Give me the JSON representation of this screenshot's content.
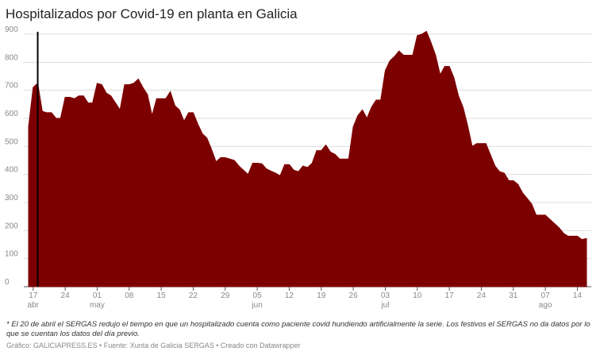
{
  "chart_data": {
    "type": "area",
    "title": "Hospitalizados por Covid-19 en planta en Galicia",
    "color": "#7d0000",
    "marker_category": "18 abr",
    "categories": [
      "16 abr",
      "17 abr",
      "18 abr",
      "19 abr",
      "20 abr",
      "21 abr",
      "22 abr",
      "23 abr",
      "24 abr",
      "25 abr",
      "26 abr",
      "27 abr",
      "28 abr",
      "29 abr",
      "30 abr",
      "01 may",
      "02 may",
      "03 may",
      "04 may",
      "05 may",
      "06 may",
      "07 may",
      "08 may",
      "09 may",
      "10 may",
      "11 may",
      "12 may",
      "13 may",
      "14 may",
      "15 may",
      "16 may",
      "17 may",
      "18 may",
      "19 may",
      "20 may",
      "21 may",
      "22 may",
      "23 may",
      "24 may",
      "25 may",
      "26 may",
      "27 may",
      "28 may",
      "29 may",
      "30 may",
      "31 may",
      "01 jun",
      "02 jun",
      "03 jun",
      "04 jun",
      "05 jun",
      "06 jun",
      "07 jun",
      "08 jun",
      "09 jun",
      "10 jun",
      "11 jun",
      "12 jun",
      "13 jun",
      "14 jun",
      "15 jun",
      "16 jun",
      "17 jun",
      "18 jun",
      "19 jun",
      "20 jun",
      "21 jun",
      "22 jun",
      "23 jun",
      "24 jun",
      "25 jun",
      "26 jun",
      "27 jun",
      "28 jun",
      "29 jun",
      "30 jun",
      "01 jul",
      "02 jul",
      "03 jul",
      "04 jul",
      "05 jul",
      "06 jul",
      "07 jul",
      "08 jul",
      "09 jul",
      "10 jul",
      "11 jul",
      "12 jul",
      "13 jul",
      "14 jul",
      "15 jul",
      "16 jul",
      "17 jul",
      "18 jul",
      "19 jul",
      "20 jul",
      "21 jul",
      "22 jul",
      "23 jul",
      "24 jul",
      "25 jul",
      "26 jul",
      "27 jul",
      "28 jul",
      "29 jul",
      "30 jul",
      "31 jul",
      "01 ago",
      "02 ago",
      "03 ago",
      "04 ago",
      "05 ago",
      "06 ago",
      "07 ago",
      "08 ago",
      "09 ago",
      "10 ago",
      "11 ago",
      "12 ago",
      "13 ago",
      "14 ago",
      "15 ago",
      "16 ago"
    ],
    "values": [
      570,
      710,
      725,
      625,
      620,
      620,
      600,
      600,
      675,
      675,
      670,
      680,
      680,
      655,
      655,
      725,
      720,
      690,
      680,
      655,
      630,
      720,
      720,
      725,
      740,
      710,
      685,
      610,
      670,
      670,
      670,
      695,
      645,
      630,
      590,
      620,
      620,
      580,
      545,
      530,
      490,
      445,
      460,
      460,
      455,
      450,
      430,
      415,
      400,
      440,
      440,
      438,
      420,
      412,
      405,
      395,
      435,
      435,
      415,
      410,
      430,
      425,
      440,
      485,
      485,
      505,
      480,
      472,
      455,
      455,
      455,
      570,
      610,
      630,
      600,
      640,
      665,
      665,
      770,
      805,
      820,
      840,
      825,
      825,
      825,
      895,
      900,
      910,
      870,
      825,
      755,
      785,
      785,
      745,
      680,
      640,
      575,
      500,
      510,
      510,
      510,
      470,
      430,
      410,
      405,
      378,
      378,
      365,
      335,
      315,
      295,
      255,
      255,
      255,
      240,
      225,
      210,
      190,
      180,
      180,
      180,
      168,
      172
    ],
    "ylim": [
      0,
      900
    ],
    "yticks": [
      0,
      100,
      200,
      300,
      400,
      500,
      600,
      700,
      800,
      900
    ],
    "grid": true,
    "xticks": [
      {
        "value": "17 abr",
        "label": "17"
      },
      {
        "value": "24 abr",
        "label": "24"
      },
      {
        "value": "01 may",
        "label": "01"
      },
      {
        "value": "08 may",
        "label": "08"
      },
      {
        "value": "15 may",
        "label": "15"
      },
      {
        "value": "22 may",
        "label": "22"
      },
      {
        "value": "29 may",
        "label": "29"
      },
      {
        "value": "05 jun",
        "label": "05"
      },
      {
        "value": "12 jun",
        "label": "12"
      },
      {
        "value": "19 jun",
        "label": "19"
      },
      {
        "value": "26 jun",
        "label": "26"
      },
      {
        "value": "03 jul",
        "label": "03"
      },
      {
        "value": "10 jul",
        "label": "10"
      },
      {
        "value": "17 jul",
        "label": "17"
      },
      {
        "value": "24 jul",
        "label": "24"
      },
      {
        "value": "31 jul",
        "label": "31"
      },
      {
        "value": "07 ago",
        "label": "07"
      },
      {
        "value": "14 ago",
        "label": "14"
      }
    ],
    "xtick_months": [
      {
        "value": "17 abr",
        "label": "abr"
      },
      {
        "value": "01 may",
        "label": "may"
      },
      {
        "value": "05 jun",
        "label": "jun"
      },
      {
        "value": "03 jul",
        "label": "jul"
      },
      {
        "value": "07 ago",
        "label": "ago"
      }
    ],
    "footnote": "* El 20 de abril el SERGAS redujo el tiempo en que un hospitalizado cuenta como paciente covid hundiendo artificialmente la serie. Los festivos el SERGAS no da datos por lo que se cuentan los datos del día previo.",
    "credits": "Gráfico: GALICIAPRESS.ES • Fuente: Xunta de Galicia SERGAS • Creado con Datawrapper"
  }
}
